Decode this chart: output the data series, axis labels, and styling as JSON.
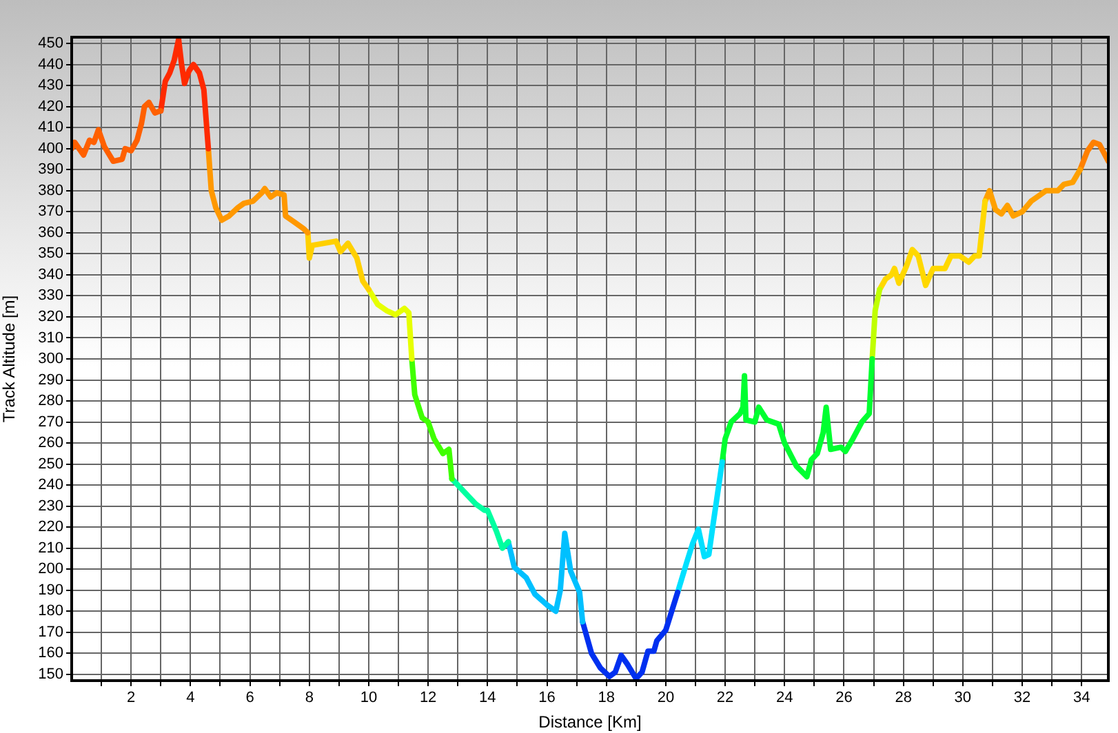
{
  "chart_data": {
    "type": "line",
    "xlabel": "Distance [Km]",
    "ylabel": "Track Altitude [m]",
    "xlim": [
      0,
      34.9
    ],
    "xticks": [
      {
        "value": 1,
        "label": null
      },
      2,
      {
        "value": 3,
        "label": null
      },
      4,
      {
        "value": 5,
        "label": null
      },
      6,
      {
        "value": 7,
        "label": null
      },
      8,
      {
        "value": 9,
        "label": null
      },
      10,
      {
        "value": 11,
        "label": null
      },
      12,
      {
        "value": 13,
        "label": null
      },
      14,
      {
        "value": 15,
        "label": null
      },
      16,
      {
        "value": 17,
        "label": null
      },
      18,
      {
        "value": 19,
        "label": null
      },
      20,
      {
        "value": 21,
        "label": null
      },
      22,
      {
        "value": 23,
        "label": null
      },
      24,
      {
        "value": 25,
        "label": null
      },
      26,
      {
        "value": 27,
        "label": null
      },
      28,
      {
        "value": 29,
        "label": null
      },
      30,
      {
        "value": 31,
        "label": null
      },
      32,
      {
        "value": 33,
        "label": null
      },
      34
    ],
    "ylim": [
      147,
      453
    ],
    "yticks": [
      150,
      160,
      170,
      180,
      190,
      200,
      210,
      220,
      230,
      240,
      250,
      260,
      270,
      280,
      290,
      300,
      310,
      320,
      330,
      340,
      350,
      360,
      370,
      380,
      390,
      400,
      410,
      420,
      430,
      440,
      450
    ],
    "grid": true,
    "legend": false,
    "marker": "none",
    "line_style": "solid",
    "series": [
      {
        "color": "#ff6000",
        "x": [
          0,
          0.1,
          0.4,
          0.6,
          0.75,
          0.9,
          1.1,
          1.4,
          1.7,
          1.8,
          2.0,
          2.2,
          2.35,
          2.45,
          2.6,
          2.8,
          3.0
        ],
        "values": [
          400,
          403,
          397,
          404,
          403,
          409,
          401,
          394,
          395,
          400,
          399,
          404,
          412,
          420,
          422,
          417,
          418
        ]
      },
      {
        "color": "#ff2a00",
        "x": [
          3.0,
          3.15,
          3.3,
          3.45,
          3.6,
          3.7,
          3.8,
          3.95,
          4.1,
          4.3,
          4.45,
          4.6
        ],
        "values": [
          418,
          432,
          436,
          442,
          452,
          440,
          431,
          437,
          440,
          436,
          428,
          400
        ]
      },
      {
        "color": "#ff9800",
        "x": [
          4.6,
          4.7,
          4.85,
          5.05,
          5.3,
          5.6,
          5.8,
          6.1,
          6.4,
          6.5,
          6.7,
          6.9,
          7.15,
          7.2,
          7.5,
          7.8,
          7.95
        ],
        "values": [
          400,
          380,
          372,
          366,
          368,
          372,
          374,
          375,
          379,
          381,
          377,
          379,
          378,
          368,
          365,
          362,
          360
        ]
      },
      {
        "color": "#ffd000",
        "x": [
          7.95,
          8.0,
          8.1,
          8.5,
          8.9,
          9.05,
          9.3,
          9.6,
          9.8,
          10.0
        ],
        "values": [
          360,
          348,
          354,
          355,
          356,
          351,
          355,
          348,
          337,
          333
        ]
      },
      {
        "color": "#e6ff00",
        "x": [
          10.0,
          10.3,
          10.6,
          10.9,
          11.2,
          11.35,
          11.45
        ],
        "values": [
          333,
          326,
          323,
          321,
          324,
          322,
          300
        ]
      },
      {
        "color": "#40ff00",
        "x": [
          11.45,
          11.55,
          11.8,
          12.0,
          12.2,
          12.5,
          12.7,
          12.8
        ],
        "values": [
          300,
          283,
          272,
          270,
          262,
          255,
          257,
          243
        ]
      },
      {
        "color": "#00ffa0",
        "x": [
          12.8,
          13.2,
          13.6,
          13.9,
          14.0,
          14.3,
          14.5,
          14.7
        ],
        "values": [
          243,
          237,
          231,
          228,
          228,
          218,
          210,
          213
        ]
      },
      {
        "color": "#00c0ff",
        "x": [
          14.7,
          14.9,
          15.3,
          15.6,
          16.0,
          16.3,
          16.45,
          16.6,
          16.8,
          16.95,
          17.1,
          17.2
        ],
        "values": [
          213,
          201,
          196,
          188,
          183,
          180,
          190,
          217,
          199,
          194,
          189,
          175
        ]
      },
      {
        "color": "#0030f0",
        "x": [
          17.2,
          17.5,
          17.8,
          18.1,
          18.3,
          18.5,
          18.7,
          19.0,
          19.2,
          19.4,
          19.6,
          19.7,
          20.0,
          20.2,
          20.4
        ],
        "values": [
          175,
          160,
          153,
          149,
          151,
          159,
          155,
          148,
          151,
          161,
          161,
          166,
          171,
          180,
          189
        ]
      },
      {
        "color": "#00e0ff",
        "x": [
          20.4,
          20.7,
          20.9,
          21.1,
          21.3,
          21.45,
          21.6,
          21.9
        ],
        "values": [
          189,
          203,
          212,
          219,
          206,
          207,
          222,
          251
        ]
      },
      {
        "color": "#00ff30",
        "x": [
          21.9,
          22.0,
          22.2,
          22.5,
          22.6,
          22.65,
          22.7,
          23.0,
          23.13,
          23.4,
          23.8,
          24.0,
          24.4,
          24.75,
          24.9,
          25.1,
          25.3,
          25.4,
          25.55,
          25.9,
          26.05,
          26.3,
          26.6,
          26.85,
          26.95
        ],
        "values": [
          251,
          262,
          270,
          274,
          277,
          292,
          271,
          270,
          277,
          271,
          269,
          260,
          249,
          244,
          252,
          255,
          265,
          277,
          257,
          258,
          256,
          262,
          270,
          274,
          300
        ]
      },
      {
        "color": "#c0ff00",
        "x": [
          26.95,
          27.05,
          27.2
        ],
        "values": [
          300,
          323,
          333
        ]
      },
      {
        "color": "#ffd800",
        "x": [
          27.2,
          27.4,
          27.6,
          27.7,
          27.85,
          28.1,
          28.3,
          28.5,
          28.75,
          29.0,
          29.4,
          29.6,
          29.9,
          30.2,
          30.4,
          30.55,
          30.75
        ],
        "values": [
          333,
          338,
          340,
          343,
          336,
          344,
          352,
          349,
          335,
          343,
          343,
          349,
          349,
          346,
          349,
          349,
          375
        ]
      },
      {
        "color": "#ffa000",
        "x": [
          30.75,
          30.9,
          31.1,
          31.3,
          31.5,
          31.7,
          32.0,
          32.3,
          32.6,
          32.8,
          33.2,
          33.4,
          33.7,
          33.95
        ],
        "values": [
          375,
          380,
          371,
          369,
          373,
          368,
          370,
          375,
          378,
          380,
          380,
          383,
          384,
          390
        ]
      },
      {
        "color": "#ff8000",
        "x": [
          33.95,
          34.2,
          34.4,
          34.6,
          34.9
        ],
        "values": [
          390,
          399,
          403,
          402,
          394
        ]
      }
    ]
  }
}
